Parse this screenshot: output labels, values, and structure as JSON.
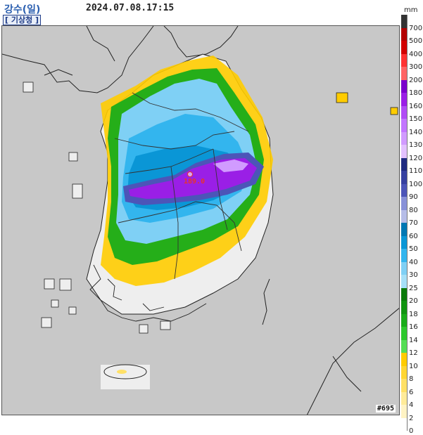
{
  "header": {
    "title": "강수(일)",
    "timestamp": "2024.07.08.17:15",
    "agency": "[ 기상청 ]"
  },
  "legend": {
    "unit": "mm",
    "levels": [
      {
        "label": "700",
        "color": "#333333"
      },
      {
        "label": "500",
        "color": "#b30000"
      },
      {
        "label": "400",
        "color": "#d20000"
      },
      {
        "label": "300",
        "color": "#ff3232"
      },
      {
        "label": "200",
        "color": "#ff6464"
      },
      {
        "label": "180",
        "color": "#7a00cc"
      },
      {
        "label": "160",
        "color": "#9a1fe6"
      },
      {
        "label": "150",
        "color": "#b04cf5"
      },
      {
        "label": "140",
        "color": "#c276ff"
      },
      {
        "label": "130",
        "color": "#d19bff"
      },
      {
        "label": "120",
        "color": "#e3c1ff"
      },
      {
        "label": "110",
        "color": "#1f2a80"
      },
      {
        "label": "100",
        "color": "#3640a0"
      },
      {
        "label": "90",
        "color": "#4c55b8"
      },
      {
        "label": "80",
        "color": "#8891d8"
      },
      {
        "label": "70",
        "color": "#b6bde8"
      },
      {
        "label": "60",
        "color": "#0077b3"
      },
      {
        "label": "50",
        "color": "#0a96d6"
      },
      {
        "label": "40",
        "color": "#33b5ee"
      },
      {
        "label": "30",
        "color": "#7fd0f5"
      },
      {
        "label": "25",
        "color": "#a6e0f8"
      },
      {
        "label": "20",
        "color": "#0a7a0a"
      },
      {
        "label": "18",
        "color": "#109410"
      },
      {
        "label": "16",
        "color": "#19ac19"
      },
      {
        "label": "14",
        "color": "#2ec82e"
      },
      {
        "label": "12",
        "color": "#55dd55"
      },
      {
        "label": "10",
        "color": "#ffcc00"
      },
      {
        "label": "8",
        "color": "#ffd633"
      },
      {
        "label": "6",
        "color": "#ffe066"
      },
      {
        "label": "4",
        "color": "#ffeb99"
      },
      {
        "label": "2",
        "color": "#fff3c4"
      },
      {
        "label": "0",
        "color": "#ffffff"
      }
    ]
  },
  "map": {
    "background_color": "#c8c8c8",
    "land_no_rain_color": "#eeeeee",
    "max_value_label": "189.0",
    "station_code": "#695"
  }
}
